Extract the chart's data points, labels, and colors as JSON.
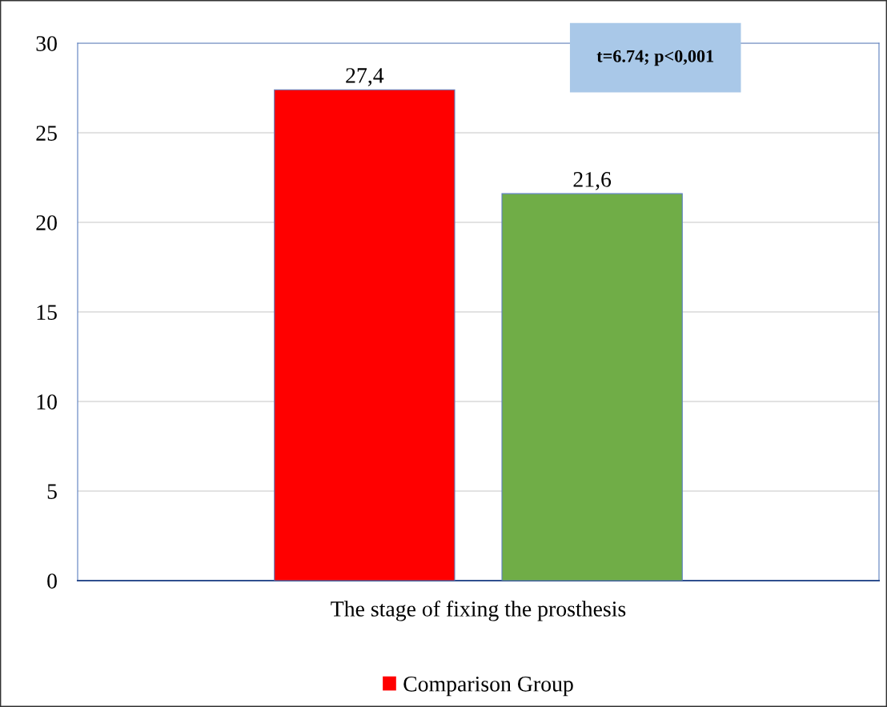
{
  "chart_data": {
    "type": "bar",
    "categories": [
      "The stage of fixing the prosthesis"
    ],
    "series": [
      {
        "name": "Comparison Group",
        "color": "#ff0000",
        "values": [
          27.4
        ],
        "value_labels": [
          "27,4"
        ]
      },
      {
        "color": "#70ad47",
        "values": [
          21.6
        ],
        "value_labels": [
          "21,6"
        ]
      }
    ],
    "ylim": [
      0,
      30
    ],
    "yticks": [
      0,
      5,
      10,
      15,
      20,
      25,
      30
    ],
    "grid": "y",
    "legend": "bottom",
    "annotations": [
      "t=6.74; p<0,001"
    ]
  }
}
